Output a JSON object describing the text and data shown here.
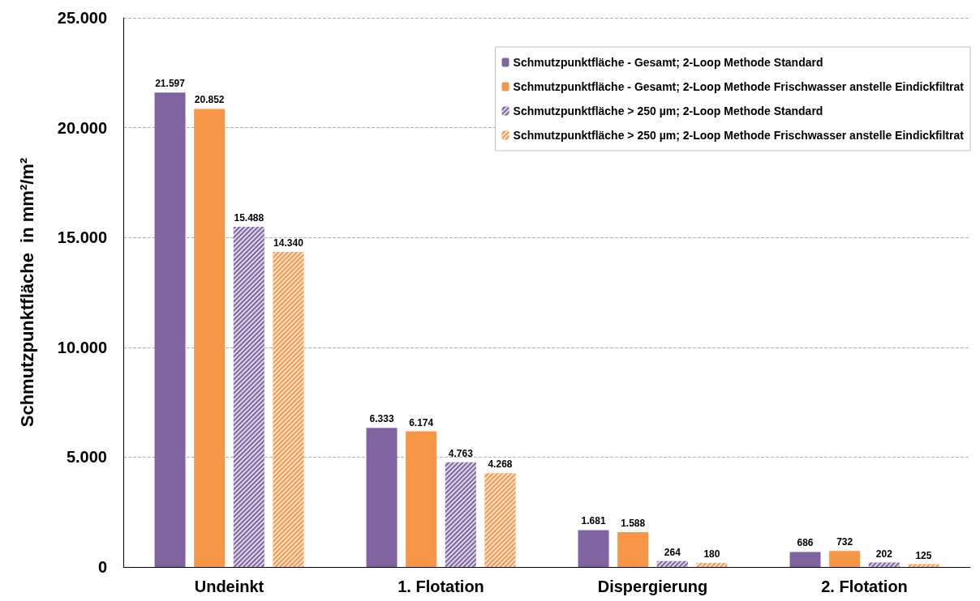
{
  "chart_data": {
    "type": "bar",
    "ylabel": "Schmutzpunktfläche  in mm²/m²",
    "categories": [
      "Undeinkt",
      "1. Flotation",
      "Dispergierung",
      "2. Flotation"
    ],
    "series": [
      {
        "name": "Schmutzpunktfläche - Gesamt; 2-Loop Methode Standard",
        "color": "#8064a2",
        "values": [
          21597,
          6333,
          1681,
          686
        ],
        "value_labels": [
          "21.597",
          "6.333",
          "1.681",
          "686"
        ]
      },
      {
        "name": "Schmutzpunktfläche - Gesamt; 2-Loop Methode Frischwasser anstelle Eindickfiltrat",
        "color": "#f79646",
        "values": [
          20852,
          6174,
          1588,
          732
        ],
        "value_labels": [
          "20.852",
          "6.174",
          "1.588",
          "732"
        ]
      },
      {
        "name": "Schmutzpunktfläche > 250 µm; 2-Loop Methode Standard",
        "color": "#8064a2",
        "values": [
          15488,
          4763,
          264,
          202
        ],
        "value_labels": [
          "15.488",
          "4.763",
          "264",
          "202"
        ]
      },
      {
        "name": "Schmutzpunktfläche > 250 µm; 2-Loop Methode Frischwasser anstelle Eindickfiltrat",
        "color": "#f79646",
        "values": [
          14340,
          4268,
          180,
          125
        ],
        "value_labels": [
          "14.340",
          "4.268",
          "180",
          "125"
        ]
      }
    ],
    "ylim": [
      0,
      25000
    ],
    "yticks": [
      {
        "value": 0,
        "label": "0"
      },
      {
        "value": 5000,
        "label": "5.000"
      },
      {
        "value": 10000,
        "label": "10.000"
      },
      {
        "value": 15000,
        "label": "15.000"
      },
      {
        "value": 20000,
        "label": "20.000"
      },
      {
        "value": 25000,
        "label": "25.000"
      }
    ],
    "grid": "y",
    "legend": "top right"
  }
}
